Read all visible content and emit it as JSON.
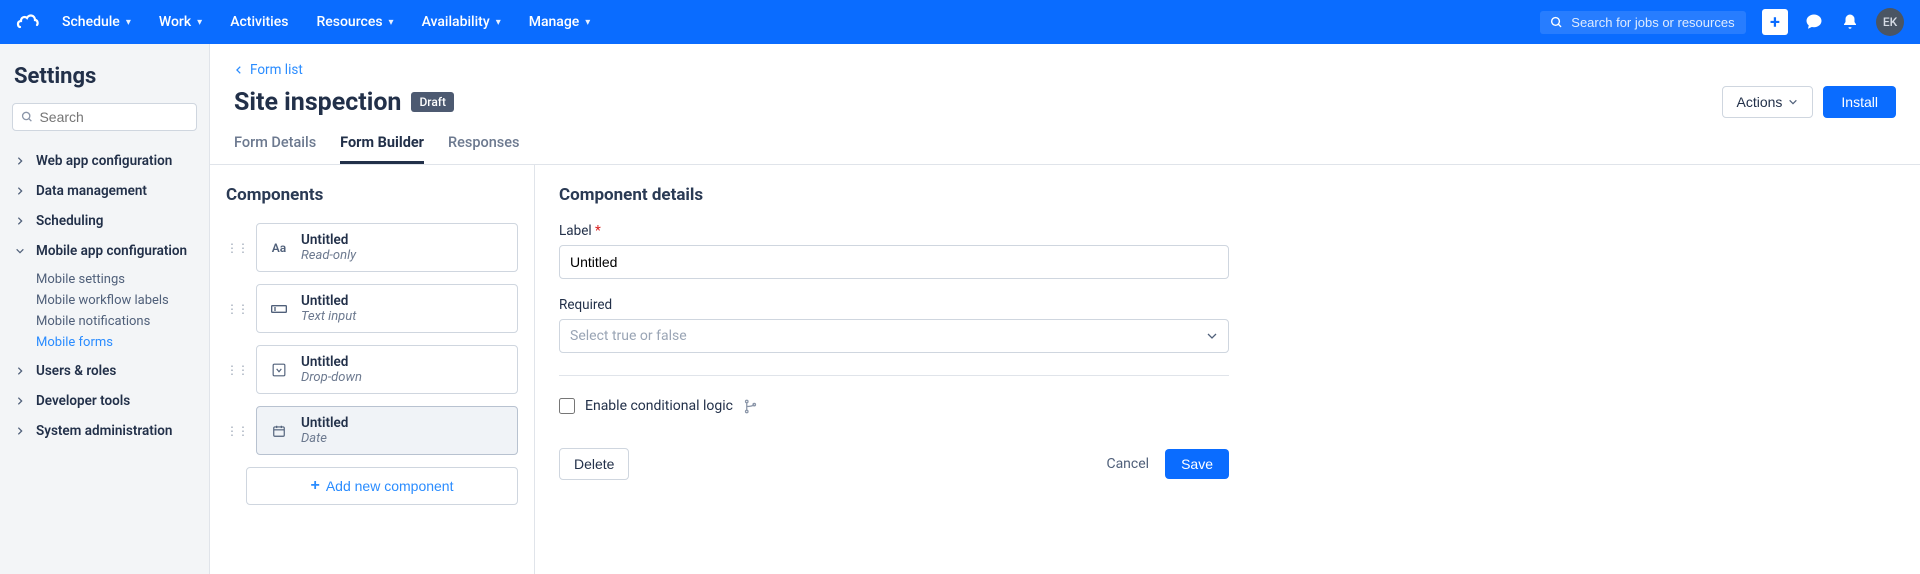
{
  "topnav": {
    "items": [
      {
        "label": "Schedule",
        "hasCaret": true
      },
      {
        "label": "Work",
        "hasCaret": true
      },
      {
        "label": "Activities",
        "hasCaret": false
      },
      {
        "label": "Resources",
        "hasCaret": true
      },
      {
        "label": "Availability",
        "hasCaret": true
      },
      {
        "label": "Manage",
        "hasCaret": true
      }
    ],
    "search_placeholder": "Search for jobs or resources",
    "avatar_initials": "EK"
  },
  "sidebar": {
    "title": "Settings",
    "search_placeholder": "Search",
    "groups": [
      {
        "label": "Web app configuration",
        "expanded": false
      },
      {
        "label": "Data management",
        "expanded": false
      },
      {
        "label": "Scheduling",
        "expanded": false
      },
      {
        "label": "Mobile app configuration",
        "expanded": true,
        "children": [
          {
            "label": "Mobile settings",
            "active": false
          },
          {
            "label": "Mobile workflow labels",
            "active": false
          },
          {
            "label": "Mobile notifications",
            "active": false
          },
          {
            "label": "Mobile forms",
            "active": true
          }
        ]
      },
      {
        "label": "Users & roles",
        "expanded": false
      },
      {
        "label": "Developer tools",
        "expanded": false
      },
      {
        "label": "System administration",
        "expanded": false
      }
    ]
  },
  "header": {
    "breadcrumb_label": "Form list",
    "title": "Site inspection",
    "badge": "Draft",
    "actions_label": "Actions",
    "install_label": "Install",
    "tabs": [
      {
        "label": "Form Details",
        "active": false
      },
      {
        "label": "Form Builder",
        "active": true
      },
      {
        "label": "Responses",
        "active": false
      }
    ]
  },
  "components": {
    "panel_title": "Components",
    "items": [
      {
        "title": "Untitled",
        "type": "Read-only",
        "icon": "text",
        "selected": false
      },
      {
        "title": "Untitled",
        "type": "Text input",
        "icon": "textinput",
        "selected": false
      },
      {
        "title": "Untitled",
        "type": "Drop-down",
        "icon": "dropdown",
        "selected": false
      },
      {
        "title": "Untitled",
        "type": "Date",
        "icon": "date",
        "selected": true
      }
    ],
    "add_label": "Add new component"
  },
  "details": {
    "panel_title": "Component details",
    "label_field": "Label",
    "label_value": "Untitled",
    "required_field": "Required",
    "required_placeholder": "Select true or false",
    "conditional_label": "Enable conditional logic",
    "delete_label": "Delete",
    "cancel_label": "Cancel",
    "save_label": "Save"
  }
}
